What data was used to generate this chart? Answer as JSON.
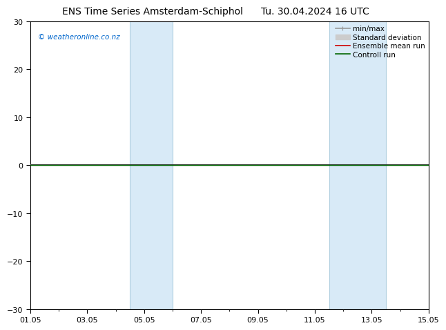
{
  "title_left": "ENS Time Series Amsterdam-Schiphol",
  "title_right": "Tu. 30.04.2024 16 UTC",
  "watermark": "© weatheronline.co.nz",
  "ylim": [
    -30,
    30
  ],
  "yticks": [
    -30,
    -20,
    -10,
    0,
    10,
    20,
    30
  ],
  "xtick_labels": [
    "01.05",
    "03.05",
    "05.05",
    "07.05",
    "09.05",
    "11.05",
    "13.05",
    "15.05"
  ],
  "xtick_positions": [
    0,
    2,
    4,
    6,
    8,
    10,
    12,
    14
  ],
  "x_total_days": 14,
  "shaded_bands": [
    {
      "x_start": 3.5,
      "x_end": 5.0,
      "color": "#d8eaf7"
    },
    {
      "x_start": 10.5,
      "x_end": 12.5,
      "color": "#d8eaf7"
    }
  ],
  "band_border_color": "#b0cfe0",
  "band_border_lw": 0.8,
  "zero_line_color": "#333333",
  "zero_line_lw": 1.5,
  "green_line_color": "#006600",
  "green_line_lw": 1.0,
  "legend_items": [
    {
      "label": "min/max",
      "color": "#999999",
      "lw": 1.2
    },
    {
      "label": "Standard deviation",
      "color": "#cccccc",
      "lw": 5
    },
    {
      "label": "Ensemble mean run",
      "color": "#cc0000",
      "lw": 1.2
    },
    {
      "label": "Controll run",
      "color": "#006600",
      "lw": 1.2
    }
  ],
  "bg_color": "#ffffff",
  "font_size_title": 10,
  "font_size_tick": 8,
  "font_size_legend": 7.5,
  "font_size_watermark": 7.5,
  "watermark_color": "#0066cc"
}
